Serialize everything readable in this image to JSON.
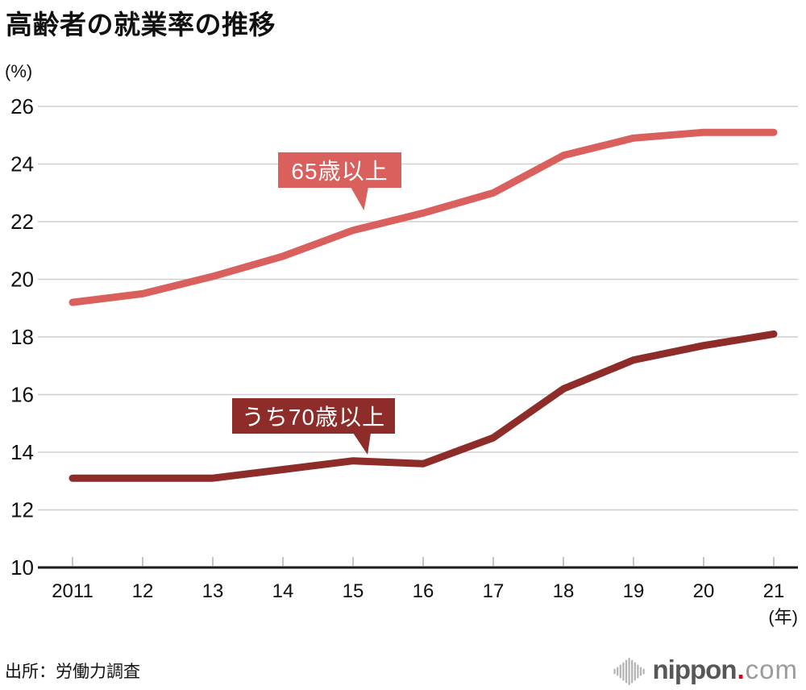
{
  "page": {
    "title": "高齢者の就業率の推移",
    "y_unit": "(%)",
    "x_unit": "(年)",
    "source": "出所：労働力調査"
  },
  "logo": {
    "icon": "soundwave-icon",
    "name": "nippon",
    "dot": ".",
    "tld": "com",
    "name_color": "#575757",
    "dot_color": "#e60012",
    "tld_color": "#9b9b9b",
    "icon_color": "#b3b3b3"
  },
  "colors": {
    "grid": "#cfcfcf",
    "axis": "#1a1a1a",
    "tick": "#c4c4c4",
    "text": "#111111",
    "series_65": "#d9605d",
    "series_70": "#8e2c29"
  },
  "chart_data": {
    "type": "line",
    "title": "高齢者の就業率の推移",
    "ylabel": "(%)",
    "xlabel": "(年)",
    "ylim": [
      10,
      26
    ],
    "y_ticks": [
      10,
      12,
      14,
      16,
      18,
      20,
      22,
      24,
      26
    ],
    "grid": "horizontal",
    "legend": "inline-callouts",
    "x": [
      2011,
      2012,
      2013,
      2014,
      2015,
      2016,
      2017,
      2018,
      2019,
      2020,
      2021
    ],
    "x_tick_labels": [
      "2011",
      "12",
      "13",
      "14",
      "15",
      "16",
      "17",
      "18",
      "19",
      "20",
      "21"
    ],
    "series": [
      {
        "name": "65歳以上",
        "color": "#d9605d",
        "values": [
          19.2,
          19.5,
          20.1,
          20.8,
          21.7,
          22.3,
          23.0,
          24.3,
          24.9,
          25.1,
          25.1
        ]
      },
      {
        "name": "うち70歳以上",
        "color": "#8e2c29",
        "values": [
          13.1,
          13.1,
          13.1,
          13.4,
          13.7,
          13.6,
          14.5,
          16.2,
          17.2,
          17.7,
          18.1
        ]
      }
    ],
    "annotations": [
      {
        "text": "65歳以上",
        "series_index": 0
      },
      {
        "text": "うち70歳以上",
        "series_index": 1
      }
    ]
  }
}
